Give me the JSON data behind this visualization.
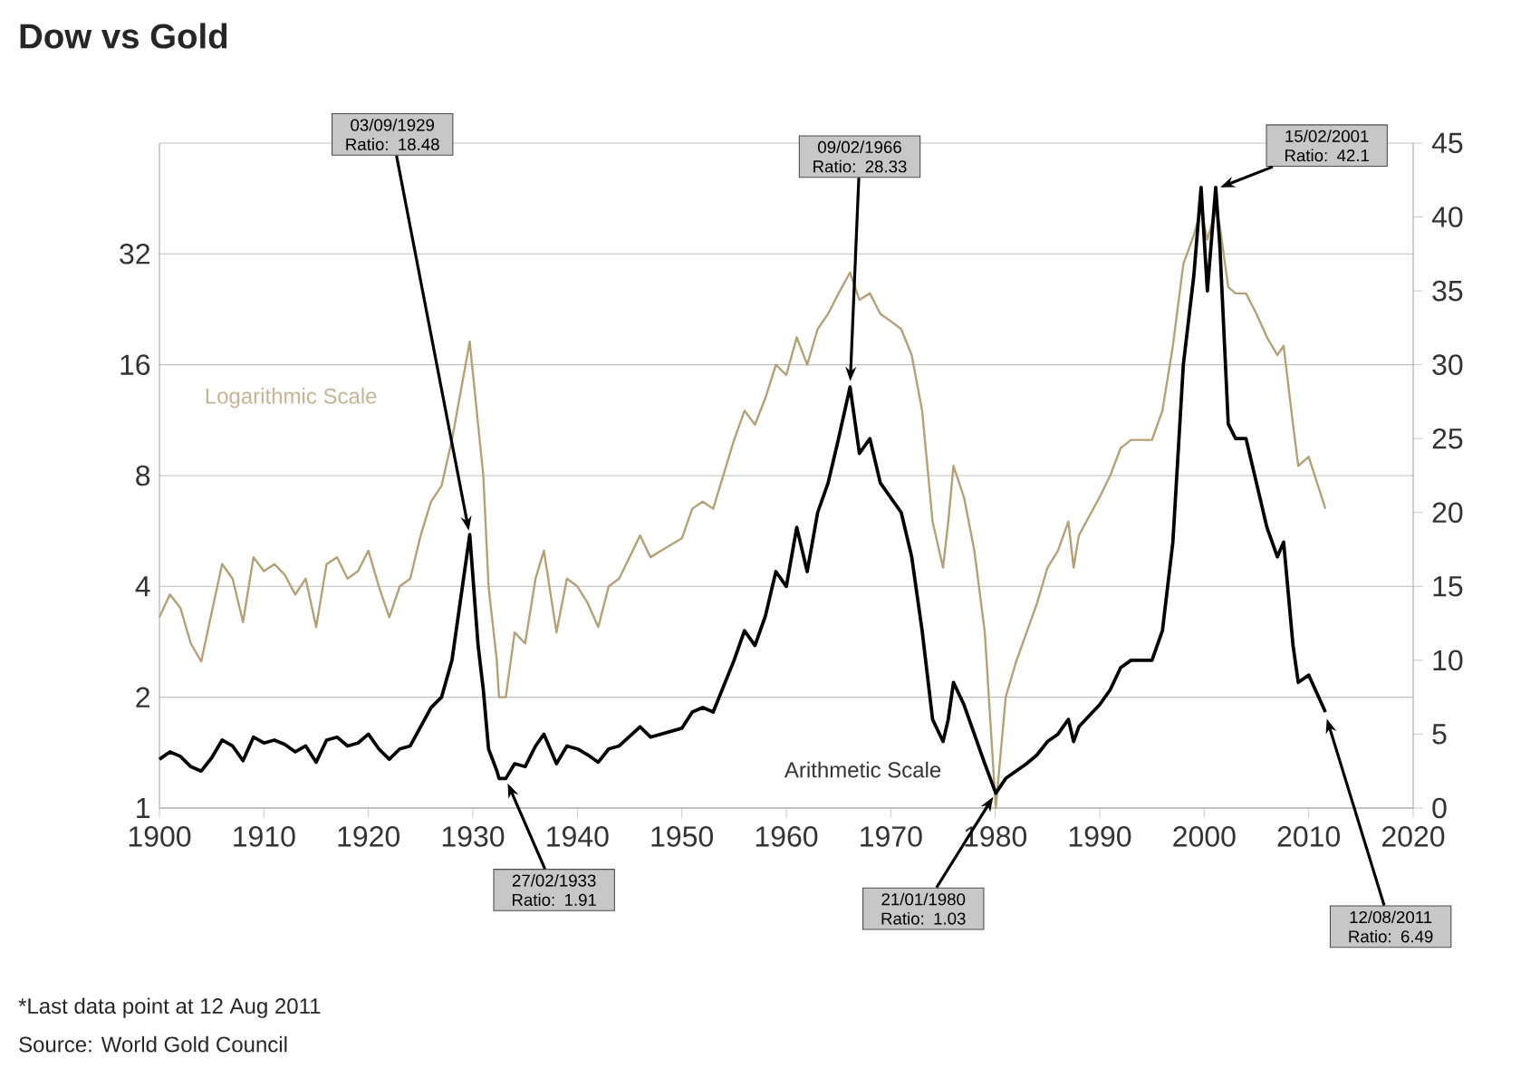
{
  "chart_data": {
    "type": "line",
    "title": "Dow vs Gold",
    "x": [
      1900,
      1901,
      1902,
      1903,
      1904,
      1905,
      1906,
      1907,
      1908,
      1909,
      1910,
      1911,
      1912,
      1913,
      1914,
      1915,
      1916,
      1917,
      1918,
      1919,
      1920,
      1921,
      1922,
      1923,
      1924,
      1925,
      1926,
      1927,
      1928,
      1929.7,
      1930.5,
      1931,
      1931.5,
      1932.3,
      1932.5,
      1933.15,
      1934,
      1935,
      1936,
      1936.8,
      1938,
      1939,
      1940,
      1941,
      1942,
      1943,
      1944,
      1946,
      1947,
      1948,
      1950,
      1951,
      1952,
      1953,
      1955,
      1956,
      1957,
      1958,
      1959,
      1960,
      1961,
      1962,
      1963,
      1964,
      1965,
      1966.1,
      1967,
      1968,
      1969,
      1970,
      1971,
      1972,
      1973,
      1974,
      1975,
      1975.5,
      1976,
      1977,
      1978,
      1979,
      1980.05,
      1981,
      1982,
      1983,
      1984,
      1985,
      1986,
      1987,
      1987.5,
      1988,
      1990,
      1991,
      1992,
      1993,
      1995,
      1996,
      1997,
      1998,
      1999,
      1999.7,
      2000.3,
      2001.1,
      2001.5,
      2002.3,
      2003,
      2004,
      2005,
      2006,
      2007,
      2007.6,
      2008.5,
      2009,
      2010,
      2011.6
    ],
    "series": [
      {
        "name": "Logarithmic Scale",
        "color": "#b5a178",
        "values": [
          3.3,
          3.8,
          3.5,
          2.8,
          2.5,
          3.4,
          4.6,
          4.2,
          3.2,
          4.8,
          4.4,
          4.6,
          4.3,
          3.8,
          4.2,
          3.1,
          4.6,
          4.8,
          4.2,
          4.4,
          5.0,
          4.0,
          3.3,
          4.0,
          4.2,
          5.5,
          6.8,
          7.5,
          10,
          18.5,
          11,
          8,
          4,
          2.5,
          2.0,
          2,
          3,
          2.8,
          4.2,
          5.0,
          3.0,
          4.2,
          4.0,
          3.6,
          3.1,
          4.0,
          4.2,
          5.5,
          4.8,
          5.0,
          5.4,
          6.5,
          6.8,
          6.5,
          10,
          12,
          11,
          13,
          16,
          15,
          19,
          16,
          20,
          22,
          25,
          28.5,
          24,
          25,
          22,
          21,
          20,
          17,
          12,
          6,
          4.5,
          6,
          8.5,
          7,
          5,
          3,
          1,
          2,
          2.5,
          3,
          3.6,
          4.5,
          5,
          6.0,
          4.5,
          5.5,
          7,
          8,
          9.5,
          10,
          10,
          12,
          18,
          30,
          36,
          42,
          35,
          42,
          38,
          26,
          25,
          25,
          22,
          19,
          17,
          18,
          11,
          8.5,
          9,
          6.5
        ]
      },
      {
        "name": "Arithmetic Scale",
        "color": "#000000",
        "axis": "y2",
        "values": [
          3.3,
          3.8,
          3.5,
          2.8,
          2.5,
          3.4,
          4.6,
          4.2,
          3.2,
          4.8,
          4.4,
          4.6,
          4.3,
          3.8,
          4.2,
          3.1,
          4.6,
          4.8,
          4.2,
          4.4,
          5.0,
          4.0,
          3.3,
          4.0,
          4.2,
          5.5,
          6.8,
          7.5,
          10,
          18.5,
          11,
          8,
          4,
          2.5,
          2.0,
          2,
          3,
          2.8,
          4.2,
          5.0,
          3.0,
          4.2,
          4.0,
          3.6,
          3.1,
          4.0,
          4.2,
          5.5,
          4.8,
          5.0,
          5.4,
          6.5,
          6.8,
          6.5,
          10,
          12,
          11,
          13,
          16,
          15,
          19,
          16,
          20,
          22,
          25,
          28.5,
          24,
          25,
          22,
          21,
          20,
          17,
          12,
          6,
          4.5,
          6,
          8.5,
          7,
          5,
          3,
          1,
          2,
          2.5,
          3,
          3.6,
          4.5,
          5,
          6.0,
          4.5,
          5.5,
          7,
          8,
          9.5,
          10,
          10,
          12,
          18,
          30,
          36,
          42,
          35,
          42,
          38,
          26,
          25,
          25,
          22,
          19,
          17,
          18,
          11,
          8.5,
          9,
          6.5
        ]
      }
    ],
    "xlim": [
      1900,
      2020
    ],
    "xticks": [
      1900,
      1910,
      1920,
      1930,
      1940,
      1950,
      1960,
      1970,
      1980,
      1990,
      2000,
      2010,
      2020
    ],
    "log": "y",
    "ylim": [
      1,
      64
    ],
    "yticks": [
      1,
      2,
      4,
      8,
      16,
      32,
      {
        "value": 64,
        "label": null
      }
    ],
    "y2lim": [
      0,
      45
    ],
    "y2ticks": [
      0,
      5,
      10,
      15,
      20,
      25,
      30,
      35,
      40,
      45
    ],
    "grid": "y",
    "annotations": [
      {
        "text": "03/09/1929 Ratio: 18.48",
        "x": 1929.7,
        "y": 5.5
      },
      {
        "text": "27/02/1933 Ratio: 1.91",
        "x": 1933.15,
        "y": 1.2
      },
      {
        "text": "09/02/1966 Ratio: 28.33",
        "x": 1966.1,
        "y": 14
      },
      {
        "text": "15/02/2001 Ratio: 42.1",
        "x": 2001.1,
        "y": 48
      },
      {
        "text": "21/01/1980 Ratio: 1.03",
        "x": 1980.05,
        "y": 1.1
      },
      {
        "text": "12/08/2011 Ratio: 6.49",
        "x": 2011.6,
        "y": 1.8
      },
      "*Last data point at 12 Aug 2011",
      "Source: World Gold Council"
    ]
  }
}
